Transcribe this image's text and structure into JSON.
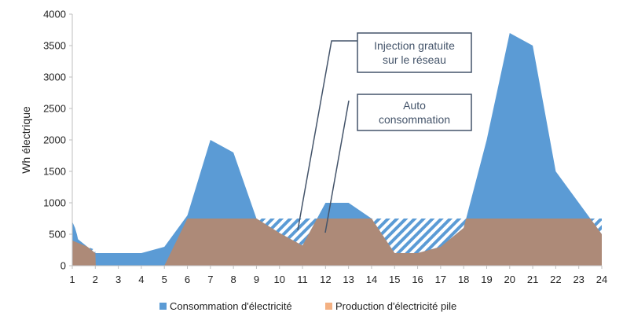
{
  "chart_data": {
    "type": "area",
    "ylabel": "Wh électrique",
    "xlabel": "",
    "ylim": [
      0,
      4000
    ],
    "xlim": [
      1,
      24
    ],
    "yticks": [
      0,
      500,
      1000,
      1500,
      2000,
      2500,
      3000,
      3500,
      4000
    ],
    "xticks": [
      1,
      2,
      3,
      4,
      5,
      6,
      7,
      8,
      9,
      10,
      11,
      12,
      13,
      14,
      15,
      16,
      17,
      18,
      19,
      20,
      21,
      22,
      23,
      24
    ],
    "grid": false,
    "legend_position": "bottom",
    "colors": {
      "consommation": "#5b9bd5",
      "production": "#f4b183",
      "overlap": "#ad8a78",
      "hatch": "#5b9bd5",
      "callout_border": "#44546a",
      "callout_text": "#44546a"
    },
    "series": [
      {
        "name": "Consommation d'électricité",
        "x": [
          1,
          1.12,
          1.2,
          1.25,
          2,
          3,
          4,
          5,
          6,
          7,
          8,
          9,
          10,
          11,
          12,
          13,
          14,
          15,
          16,
          17,
          18,
          19,
          20,
          21,
          22,
          23,
          24
        ],
        "values": [
          700,
          600,
          500,
          420,
          200,
          200,
          200,
          300,
          800,
          2000,
          1800,
          750,
          520,
          320,
          1000,
          1000,
          750,
          200,
          200,
          300,
          600,
          2000,
          3700,
          3500,
          1500,
          1000,
          500
        ]
      },
      {
        "name": "Production d'électricité pile",
        "x": [
          1,
          2,
          2.02,
          4.98,
          5,
          6,
          7,
          8,
          9,
          10,
          11,
          12,
          13,
          14,
          15,
          16,
          17,
          18,
          19,
          20,
          21,
          22,
          23,
          24
        ],
        "values": [
          400,
          250,
          0,
          0,
          0,
          750,
          750,
          750,
          750,
          750,
          750,
          750,
          750,
          750,
          750,
          750,
          750,
          750,
          750,
          750,
          750,
          750,
          750,
          750
        ]
      }
    ],
    "annotations": [
      {
        "lines": [
          "Injection gratuite",
          "sur le réseau"
        ]
      },
      {
        "lines": [
          "Auto",
          "consommation"
        ]
      }
    ]
  }
}
